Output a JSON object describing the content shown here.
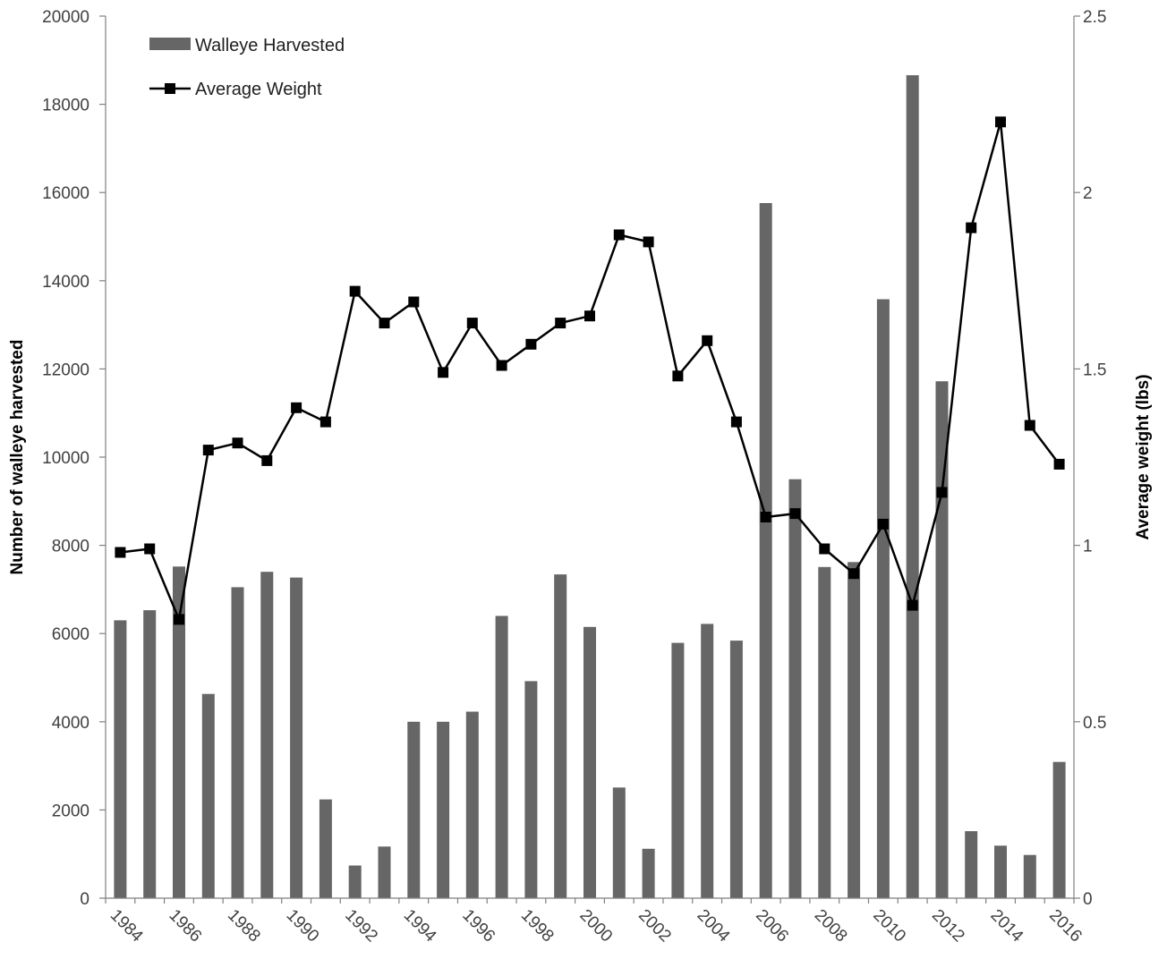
{
  "chart_data": {
    "type": "bar",
    "title": "",
    "xlabel": "",
    "ylabel": "Number of walleye harvested",
    "y2label": "Average weight (lbs)",
    "ylim": [
      0,
      20000
    ],
    "y2lim": [
      0,
      2.5
    ],
    "yticks": [
      "0",
      "2000",
      "4000",
      "6000",
      "8000",
      "10000",
      "12000",
      "14000",
      "16000",
      "18000",
      "20000"
    ],
    "y2ticks": [
      "0",
      "0.5",
      "1",
      "1.5",
      "2",
      "2.5"
    ],
    "xtick_labels": [
      "1984",
      "1986",
      "1988",
      "1990",
      "1992",
      "1994",
      "1996",
      "1998",
      "2000",
      "2002",
      "2004",
      "2006",
      "2008",
      "2010",
      "2012",
      "2014",
      "2016"
    ],
    "categories": [
      1984,
      1985,
      1986,
      1987,
      1988,
      1989,
      1990,
      1991,
      1992,
      1993,
      1994,
      1995,
      1996,
      1997,
      1998,
      1999,
      2000,
      2001,
      2002,
      2003,
      2004,
      2005,
      2006,
      2007,
      2008,
      2009,
      2010,
      2011,
      2012,
      2013,
      2014,
      2015,
      2016
    ],
    "series": [
      {
        "name": "Walleye Harvested",
        "type": "bar",
        "axis": "left",
        "color": "#666666",
        "values": [
          6300,
          6530,
          7520,
          4630,
          7050,
          7400,
          7270,
          2240,
          740,
          1170,
          4000,
          4000,
          4230,
          6400,
          4920,
          7340,
          6150,
          2510,
          1120,
          5790,
          6220,
          5840,
          15760,
          9500,
          7510,
          7620,
          13580,
          18660,
          11720,
          1520,
          1190,
          980,
          3090
        ]
      },
      {
        "name": "Average Weight",
        "type": "line",
        "axis": "right",
        "color": "#000000",
        "marker": "square",
        "values": [
          0.98,
          0.99,
          0.79,
          1.27,
          1.29,
          1.24,
          1.39,
          1.35,
          1.72,
          1.63,
          1.69,
          1.49,
          1.63,
          1.51,
          1.57,
          1.63,
          1.65,
          1.88,
          1.86,
          1.48,
          1.58,
          1.35,
          1.08,
          1.09,
          0.99,
          0.92,
          1.06,
          0.83,
          1.15,
          1.9,
          2.2,
          1.34,
          1.23
        ]
      }
    ],
    "legend": {
      "placement": "top-left",
      "entries": [
        "Walleye Harvested",
        "Average Weight"
      ]
    },
    "grid": false
  }
}
